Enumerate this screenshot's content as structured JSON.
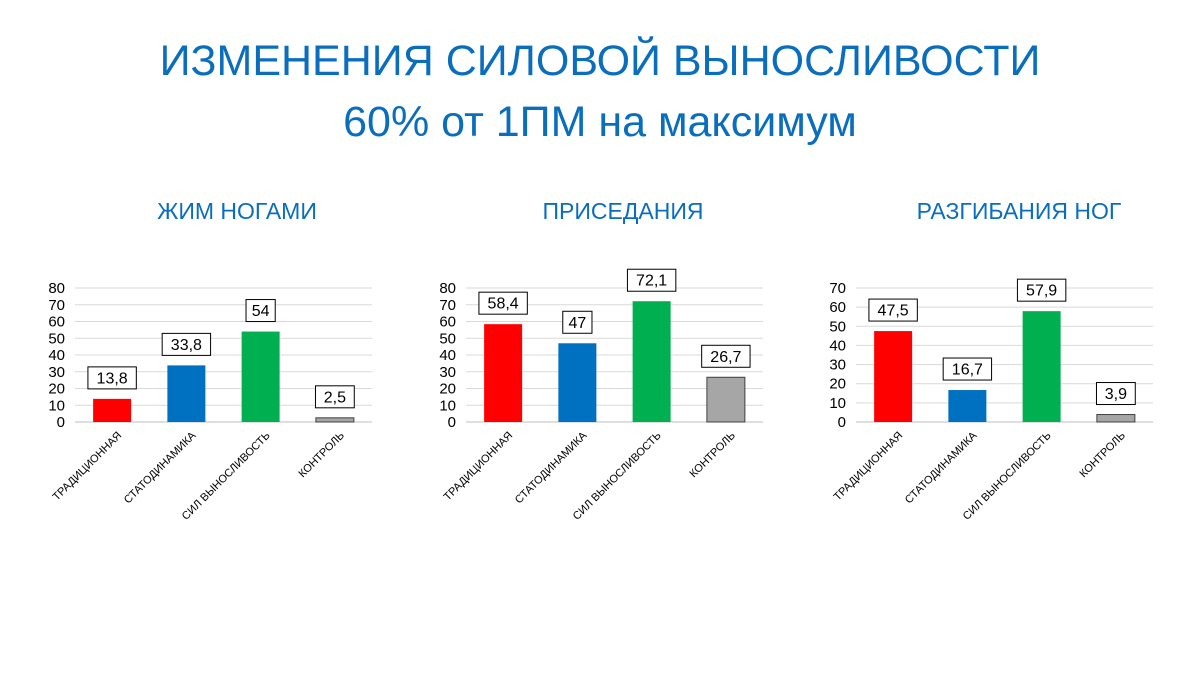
{
  "title": {
    "line1": "ИЗМЕНЕНИЯ СИЛОВОЙ ВЫНОСЛИВОСТИ",
    "line2": "60% от 1ПМ на максимум"
  },
  "colors": {
    "title": "#0a6ebd",
    "bars": [
      "#ff0000",
      "#0070c0",
      "#00b050",
      "#a6a6a6"
    ],
    "gridline": "#d9d9d9"
  },
  "chart_data": [
    {
      "type": "bar",
      "title": "ЖИМ НОГАМИ",
      "categories": [
        "ТРАДИЦИОННАЯ",
        "СТАТОДИНАМИКА",
        "СИЛ ВЫНОСЛИВОСТЬ",
        "КОНТРОЛЬ"
      ],
      "values": [
        13.8,
        33.8,
        54,
        2.5
      ],
      "data_labels": [
        "13,8",
        "33,8",
        "54",
        "2,5"
      ],
      "ylim": [
        0,
        80
      ],
      "yticks": [
        0,
        10,
        20,
        30,
        40,
        50,
        60,
        70,
        80
      ],
      "grid": true,
      "xlabel": "",
      "ylabel": ""
    },
    {
      "type": "bar",
      "title": "ПРИСЕДАНИЯ",
      "categories": [
        "ТРАДИЦИОННАЯ",
        "СТАТОДИНАМИКА",
        "СИЛ ВЫНОСЛИВОСТЬ",
        "КОНТРОЛЬ"
      ],
      "values": [
        58.4,
        47,
        72.1,
        26.7
      ],
      "data_labels": [
        "58,4",
        "47",
        "72,1",
        "26,7"
      ],
      "ylim": [
        0,
        80
      ],
      "yticks": [
        0,
        10,
        20,
        30,
        40,
        50,
        60,
        70,
        80
      ],
      "grid": true,
      "xlabel": "",
      "ylabel": ""
    },
    {
      "type": "bar",
      "title": "РАЗГИБАНИЯ НОГ",
      "categories": [
        "ТРАДИЦИОННАЯ",
        "СТАТОДИНАМИКА",
        "СИЛ ВЫНОСЛИВОСТЬ",
        "КОНТРОЛЬ"
      ],
      "values": [
        47.5,
        16.7,
        57.9,
        3.9
      ],
      "data_labels": [
        "47,5",
        "16,7",
        "57,9",
        "3,9"
      ],
      "ylim": [
        0,
        70
      ],
      "yticks": [
        0,
        10,
        20,
        30,
        40,
        50,
        60,
        70
      ],
      "grid": true,
      "xlabel": "",
      "ylabel": ""
    }
  ]
}
